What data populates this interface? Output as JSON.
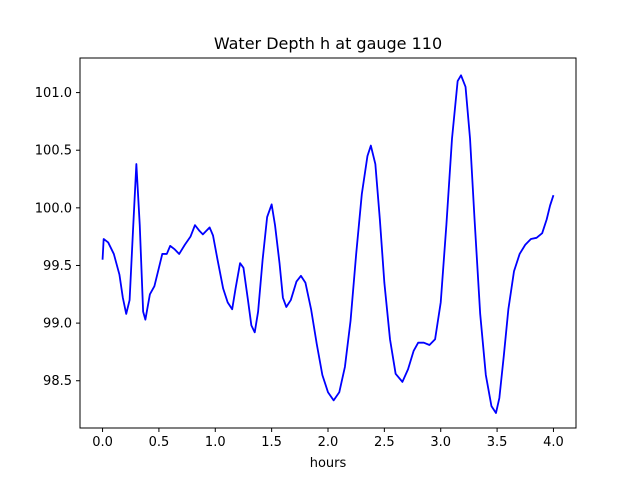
{
  "chart_data": {
    "type": "line",
    "title": "Water Depth h at gauge 110",
    "xlabel": "hours",
    "ylabel": "",
    "xlim": [
      -0.2,
      4.2
    ],
    "ylim": [
      98.09,
      101.3
    ],
    "grid": false,
    "legend": "none",
    "x_ticks": [
      {
        "value": 0.0,
        "label": "0.0"
      },
      {
        "value": 0.5,
        "label": "0.5"
      },
      {
        "value": 1.0,
        "label": "1.0"
      },
      {
        "value": 1.5,
        "label": "1.5"
      },
      {
        "value": 2.0,
        "label": "2.0"
      },
      {
        "value": 2.5,
        "label": "2.5"
      },
      {
        "value": 3.0,
        "label": "3.0"
      },
      {
        "value": 3.5,
        "label": "3.5"
      },
      {
        "value": 4.0,
        "label": "4.0"
      }
    ],
    "y_ticks": [
      {
        "value": 98.5,
        "label": "98.5"
      },
      {
        "value": 99.0,
        "label": "99.0"
      },
      {
        "value": 99.5,
        "label": "99.5"
      },
      {
        "value": 100.0,
        "label": "100.0"
      },
      {
        "value": 100.5,
        "label": "100.5"
      },
      {
        "value": 101.0,
        "label": "101.0"
      }
    ],
    "series": [
      {
        "color": "#0000ff",
        "points": [
          [
            0.0,
            99.55
          ],
          [
            0.01,
            99.73
          ],
          [
            0.05,
            99.7
          ],
          [
            0.1,
            99.6
          ],
          [
            0.15,
            99.42
          ],
          [
            0.18,
            99.22
          ],
          [
            0.21,
            99.08
          ],
          [
            0.24,
            99.2
          ],
          [
            0.27,
            99.8
          ],
          [
            0.3,
            100.38
          ],
          [
            0.33,
            99.85
          ],
          [
            0.36,
            99.1
          ],
          [
            0.38,
            99.03
          ],
          [
            0.42,
            99.25
          ],
          [
            0.46,
            99.32
          ],
          [
            0.5,
            99.48
          ],
          [
            0.53,
            99.6
          ],
          [
            0.57,
            99.6
          ],
          [
            0.6,
            99.67
          ],
          [
            0.64,
            99.64
          ],
          [
            0.68,
            99.6
          ],
          [
            0.73,
            99.68
          ],
          [
            0.78,
            99.75
          ],
          [
            0.82,
            99.85
          ],
          [
            0.86,
            99.8
          ],
          [
            0.89,
            99.77
          ],
          [
            0.92,
            99.8
          ],
          [
            0.95,
            99.83
          ],
          [
            0.98,
            99.76
          ],
          [
            1.02,
            99.55
          ],
          [
            1.07,
            99.3
          ],
          [
            1.11,
            99.18
          ],
          [
            1.15,
            99.12
          ],
          [
            1.18,
            99.3
          ],
          [
            1.22,
            99.52
          ],
          [
            1.25,
            99.48
          ],
          [
            1.29,
            99.2
          ],
          [
            1.32,
            98.98
          ],
          [
            1.35,
            98.92
          ],
          [
            1.38,
            99.1
          ],
          [
            1.42,
            99.55
          ],
          [
            1.46,
            99.92
          ],
          [
            1.5,
            100.03
          ],
          [
            1.53,
            99.85
          ],
          [
            1.57,
            99.52
          ],
          [
            1.6,
            99.22
          ],
          [
            1.63,
            99.14
          ],
          [
            1.67,
            99.2
          ],
          [
            1.72,
            99.36
          ],
          [
            1.76,
            99.41
          ],
          [
            1.8,
            99.35
          ],
          [
            1.85,
            99.12
          ],
          [
            1.9,
            98.82
          ],
          [
            1.95,
            98.55
          ],
          [
            2.0,
            98.4
          ],
          [
            2.05,
            98.33
          ],
          [
            2.1,
            98.4
          ],
          [
            2.15,
            98.62
          ],
          [
            2.2,
            99.02
          ],
          [
            2.25,
            99.6
          ],
          [
            2.3,
            100.12
          ],
          [
            2.35,
            100.45
          ],
          [
            2.38,
            100.54
          ],
          [
            2.42,
            100.38
          ],
          [
            2.46,
            99.9
          ],
          [
            2.5,
            99.35
          ],
          [
            2.55,
            98.86
          ],
          [
            2.6,
            98.56
          ],
          [
            2.66,
            98.49
          ],
          [
            2.71,
            98.6
          ],
          [
            2.76,
            98.76
          ],
          [
            2.8,
            98.83
          ],
          [
            2.85,
            98.83
          ],
          [
            2.9,
            98.81
          ],
          [
            2.95,
            98.86
          ],
          [
            3.0,
            99.18
          ],
          [
            3.05,
            99.85
          ],
          [
            3.1,
            100.6
          ],
          [
            3.15,
            101.1
          ],
          [
            3.18,
            101.15
          ],
          [
            3.22,
            101.05
          ],
          [
            3.26,
            100.6
          ],
          [
            3.3,
            99.9
          ],
          [
            3.35,
            99.08
          ],
          [
            3.4,
            98.55
          ],
          [
            3.45,
            98.28
          ],
          [
            3.49,
            98.22
          ],
          [
            3.52,
            98.35
          ],
          [
            3.56,
            98.72
          ],
          [
            3.6,
            99.12
          ],
          [
            3.65,
            99.45
          ],
          [
            3.7,
            99.6
          ],
          [
            3.75,
            99.68
          ],
          [
            3.8,
            99.73
          ],
          [
            3.85,
            99.74
          ],
          [
            3.9,
            99.78
          ],
          [
            3.94,
            99.9
          ],
          [
            3.97,
            100.02
          ],
          [
            4.0,
            100.11
          ]
        ]
      }
    ]
  }
}
